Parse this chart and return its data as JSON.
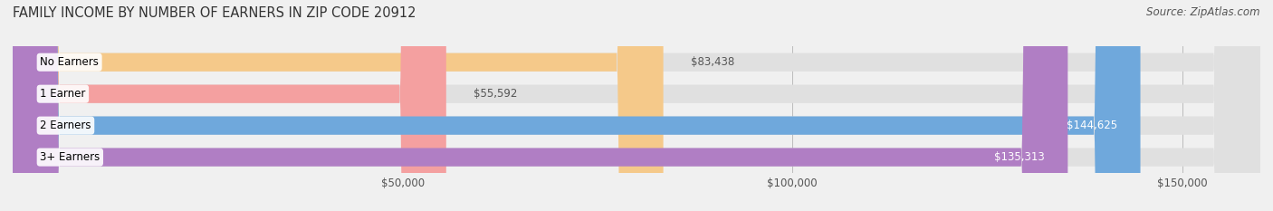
{
  "title": "FAMILY INCOME BY NUMBER OF EARNERS IN ZIP CODE 20912",
  "source": "Source: ZipAtlas.com",
  "categories": [
    "No Earners",
    "1 Earner",
    "2 Earners",
    "3+ Earners"
  ],
  "values": [
    83438,
    55592,
    144625,
    135313
  ],
  "bar_colors": [
    "#f5c98a",
    "#f4a0a0",
    "#6fa8dc",
    "#b07ec4"
  ],
  "label_colors": [
    "#333333",
    "#333333",
    "#ffffff",
    "#ffffff"
  ],
  "xlim": [
    0,
    160000
  ],
  "xticks": [
    50000,
    100000,
    150000
  ],
  "xtick_labels": [
    "$50,000",
    "$100,000",
    "$150,000"
  ],
  "bg_color": "#f0f0f0",
  "bar_bg_color": "#e0e0e0",
  "title_fontsize": 10.5,
  "source_fontsize": 8.5,
  "label_fontsize": 8.5,
  "category_fontsize": 8.5,
  "tick_fontsize": 8.5,
  "bar_height": 0.58,
  "figsize": [
    14.06,
    2.33
  ]
}
